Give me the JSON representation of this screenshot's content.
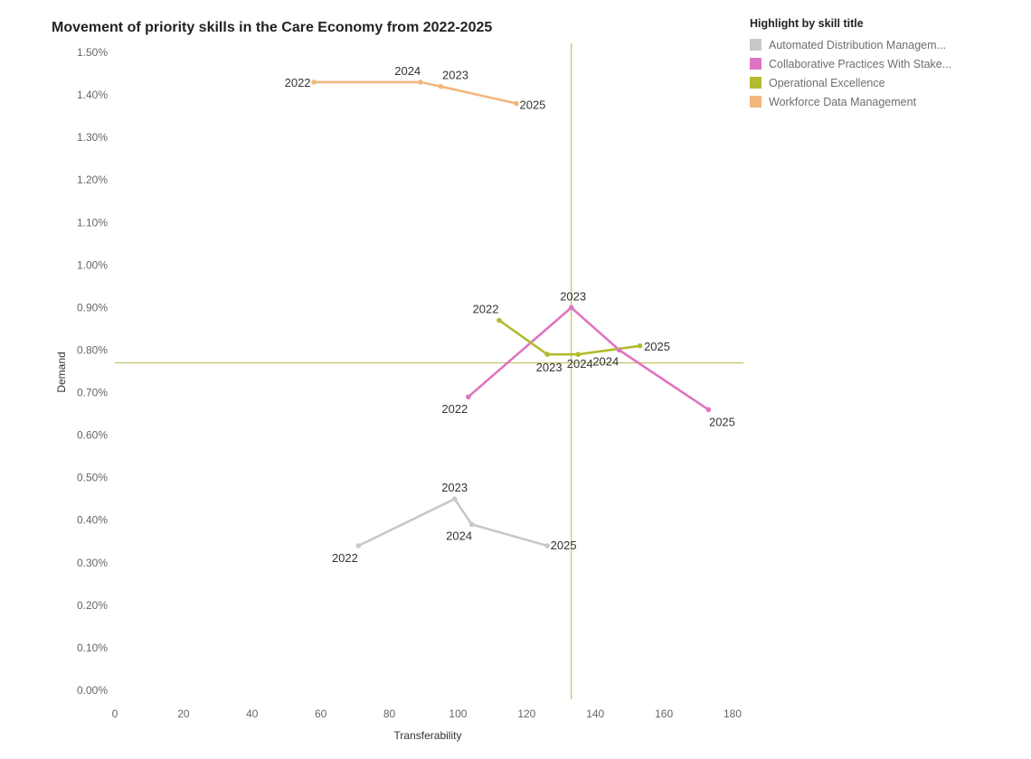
{
  "chart_data": {
    "type": "line",
    "title": "Movement of priority skills in the Care Economy from 2022-2025",
    "xlabel": "Transferability",
    "ylabel": "Demand",
    "xlim": [
      0,
      180
    ],
    "ylim": [
      0,
      1.5
    ],
    "x_ticks": [
      0,
      20,
      40,
      60,
      80,
      100,
      120,
      140,
      160,
      180
    ],
    "y_ticks": [
      "0.00%",
      "0.10%",
      "0.20%",
      "0.30%",
      "0.40%",
      "0.50%",
      "0.60%",
      "0.70%",
      "0.80%",
      "0.90%",
      "1.00%",
      "1.10%",
      "1.20%",
      "1.30%",
      "1.40%",
      "1.50%"
    ],
    "reference_lines": {
      "x": 133,
      "y": 0.77
    },
    "legend_title": "Highlight by skill title",
    "series": [
      {
        "name": "Automated Distribution Managem...",
        "color": "#c8c8c8",
        "points": [
          {
            "year": "2022",
            "x": 71,
            "y": 0.34
          },
          {
            "year": "2023",
            "x": 99,
            "y": 0.45
          },
          {
            "year": "2024",
            "x": 104,
            "y": 0.39
          },
          {
            "year": "2025",
            "x": 126,
            "y": 0.34
          }
        ]
      },
      {
        "name": "Collaborative Practices With Stake...",
        "color": "#df74c2",
        "points": [
          {
            "year": "2022",
            "x": 103,
            "y": 0.69
          },
          {
            "year": "2023",
            "x": 133,
            "y": 0.9
          },
          {
            "year": "2024",
            "x": 147,
            "y": 0.8
          },
          {
            "year": "2025",
            "x": 173,
            "y": 0.66
          }
        ]
      },
      {
        "name": "Operational Excellence",
        "color": "#b3ba30",
        "points": [
          {
            "year": "2022",
            "x": 112,
            "y": 0.87
          },
          {
            "year": "2023",
            "x": 126,
            "y": 0.79
          },
          {
            "year": "2024",
            "x": 135,
            "y": 0.79
          },
          {
            "year": "2025",
            "x": 153,
            "y": 0.81
          }
        ]
      },
      {
        "name": "Workforce Data Management",
        "color": "#f2b77d",
        "points": [
          {
            "year": "2022",
            "x": 58,
            "y": 1.43
          },
          {
            "year": "2024",
            "x": 89,
            "y": 1.43
          },
          {
            "year": "2023",
            "x": 95,
            "y": 1.42
          },
          {
            "year": "2025",
            "x": 117,
            "y": 1.38
          }
        ]
      }
    ]
  }
}
